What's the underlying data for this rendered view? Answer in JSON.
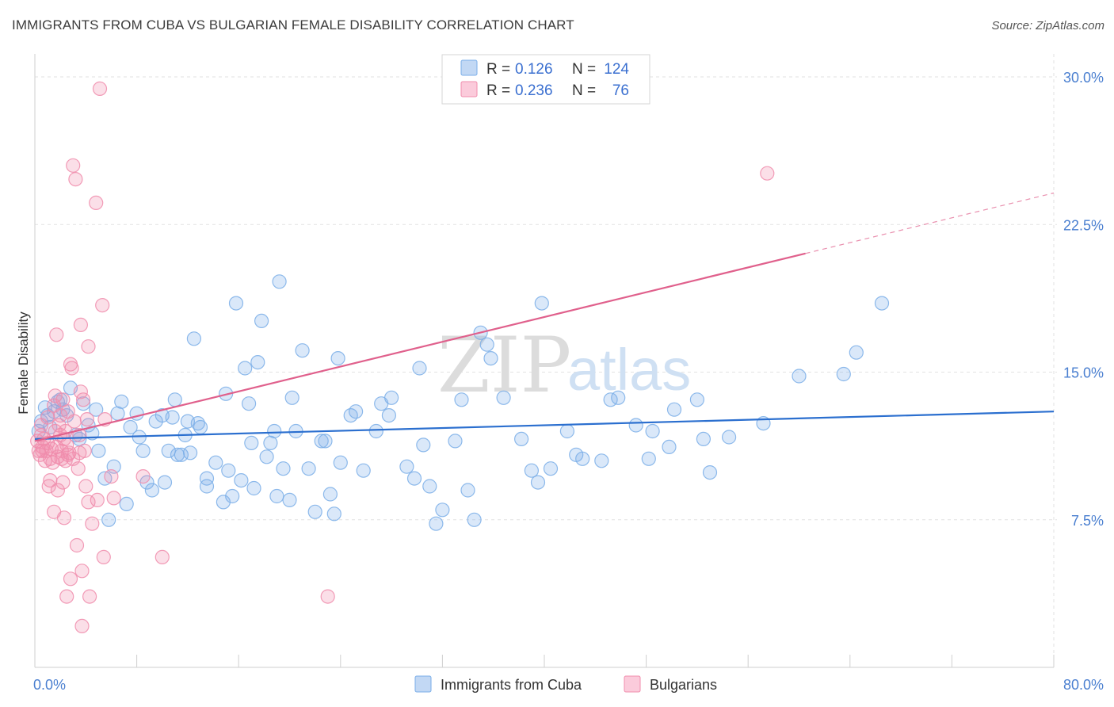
{
  "header": {
    "title": "IMMIGRANTS FROM CUBA VS BULGARIAN FEMALE DISABILITY CORRELATION CHART",
    "source": "Source: ZipAtlas.com"
  },
  "watermark": {
    "part1": "ZIP",
    "part2": "atlas"
  },
  "chart_data": {
    "type": "scatter",
    "title": "IMMIGRANTS FROM CUBA VS BULGARIAN FEMALE DISABILITY CORRELATION CHART",
    "xlabel": "",
    "ylabel": "Female Disability",
    "xlim": [
      0,
      80
    ],
    "ylim": [
      0,
      32
    ],
    "x_tick_labels": [
      "0.0%",
      "80.0%"
    ],
    "y_ticks": [
      7.5,
      15.0,
      22.5,
      30.0
    ],
    "y_tick_labels": [
      "7.5%",
      "15.0%",
      "22.5%",
      "30.0%"
    ],
    "grid": true,
    "legend_position": "bottom-center",
    "stats": [
      {
        "r_label": "R =",
        "r_value": "0.126",
        "n_label": "N =",
        "n_value": "124"
      },
      {
        "r_label": "R =",
        "r_value": "0.236",
        "n_label": "N =",
        "n_value": "76"
      }
    ],
    "series": [
      {
        "name": "Immigrants from Cuba",
        "color": "#7aaee8",
        "line_color": "#2b6fcf",
        "trend": {
          "x0": 0,
          "y0": 11.6,
          "x1": 80,
          "y1": 13.0,
          "dash_from": null
        },
        "points": [
          [
            0.5,
            12.5
          ],
          [
            0.8,
            13.2
          ],
          [
            1.0,
            12.8
          ],
          [
            1.2,
            12.2
          ],
          [
            1.5,
            13.0
          ],
          [
            1.8,
            13.5
          ],
          [
            2.0,
            13.6
          ],
          [
            2.2,
            13.1
          ],
          [
            2.5,
            12.8
          ],
          [
            2.8,
            14.2
          ],
          [
            3.2,
            11.8
          ],
          [
            3.5,
            11.6
          ],
          [
            3.8,
            13.4
          ],
          [
            4.2,
            12.3
          ],
          [
            4.5,
            11.9
          ],
          [
            4.8,
            13.1
          ],
          [
            5.0,
            11.0
          ],
          [
            5.5,
            9.6
          ],
          [
            5.8,
            7.5
          ],
          [
            6.2,
            10.2
          ],
          [
            6.5,
            12.9
          ],
          [
            6.8,
            13.5
          ],
          [
            7.2,
            8.3
          ],
          [
            7.5,
            12.2
          ],
          [
            8.0,
            12.9
          ],
          [
            8.2,
            11.7
          ],
          [
            8.5,
            11.0
          ],
          [
            8.8,
            9.4
          ],
          [
            9.2,
            9.0
          ],
          [
            9.5,
            12.5
          ],
          [
            10.0,
            12.8
          ],
          [
            10.2,
            9.4
          ],
          [
            10.5,
            11.0
          ],
          [
            10.8,
            12.7
          ],
          [
            11.0,
            13.6
          ],
          [
            11.2,
            10.8
          ],
          [
            11.5,
            10.8
          ],
          [
            11.8,
            11.8
          ],
          [
            12.0,
            12.5
          ],
          [
            12.2,
            10.9
          ],
          [
            12.5,
            16.7
          ],
          [
            12.8,
            12.4
          ],
          [
            13.0,
            12.2
          ],
          [
            13.5,
            9.6
          ],
          [
            13.5,
            9.2
          ],
          [
            14.2,
            10.4
          ],
          [
            14.8,
            8.4
          ],
          [
            15.0,
            13.9
          ],
          [
            15.2,
            10.0
          ],
          [
            15.5,
            8.7
          ],
          [
            15.8,
            18.5
          ],
          [
            16.2,
            9.5
          ],
          [
            16.5,
            15.2
          ],
          [
            16.8,
            13.4
          ],
          [
            17.0,
            11.4
          ],
          [
            17.2,
            9.1
          ],
          [
            17.5,
            15.5
          ],
          [
            17.8,
            17.6
          ],
          [
            18.2,
            10.7
          ],
          [
            18.5,
            11.4
          ],
          [
            18.8,
            12.0
          ],
          [
            19.0,
            8.7
          ],
          [
            19.2,
            19.6
          ],
          [
            19.5,
            10.1
          ],
          [
            20.0,
            8.5
          ],
          [
            20.2,
            13.7
          ],
          [
            20.5,
            12.0
          ],
          [
            21.0,
            16.1
          ],
          [
            21.5,
            10.1
          ],
          [
            22.0,
            7.9
          ],
          [
            22.5,
            11.5
          ],
          [
            22.8,
            11.5
          ],
          [
            23.2,
            8.8
          ],
          [
            23.5,
            7.8
          ],
          [
            23.8,
            15.7
          ],
          [
            24.0,
            10.4
          ],
          [
            24.8,
            12.8
          ],
          [
            25.2,
            13.0
          ],
          [
            25.8,
            10.0
          ],
          [
            26.8,
            12.0
          ],
          [
            27.2,
            13.4
          ],
          [
            27.8,
            12.8
          ],
          [
            28.0,
            13.7
          ],
          [
            29.2,
            10.2
          ],
          [
            29.8,
            9.6
          ],
          [
            30.2,
            15.2
          ],
          [
            30.5,
            11.3
          ],
          [
            31.0,
            9.2
          ],
          [
            31.5,
            7.3
          ],
          [
            32.0,
            8.0
          ],
          [
            33.0,
            11.5
          ],
          [
            33.5,
            13.6
          ],
          [
            34.0,
            9.0
          ],
          [
            34.5,
            7.5
          ],
          [
            35.0,
            17.0
          ],
          [
            35.5,
            16.4
          ],
          [
            35.8,
            15.7
          ],
          [
            36.8,
            13.7
          ],
          [
            38.2,
            11.6
          ],
          [
            39.0,
            10.0
          ],
          [
            39.5,
            9.4
          ],
          [
            39.8,
            18.5
          ],
          [
            40.5,
            10.1
          ],
          [
            41.8,
            12.0
          ],
          [
            42.5,
            10.8
          ],
          [
            43.0,
            10.6
          ],
          [
            44.5,
            10.5
          ],
          [
            45.2,
            13.6
          ],
          [
            45.8,
            13.7
          ],
          [
            47.2,
            12.3
          ],
          [
            48.2,
            10.6
          ],
          [
            48.5,
            12.0
          ],
          [
            49.8,
            11.2
          ],
          [
            50.2,
            13.1
          ],
          [
            52.0,
            13.6
          ],
          [
            52.5,
            11.6
          ],
          [
            53.0,
            9.9
          ],
          [
            54.5,
            11.7
          ],
          [
            57.2,
            12.4
          ],
          [
            60.0,
            14.8
          ],
          [
            63.5,
            14.9
          ],
          [
            64.5,
            16.0
          ],
          [
            66.5,
            18.5
          ],
          [
            0.3,
            12.0
          ]
        ]
      },
      {
        "name": "Bulgarians",
        "color": "#f08cac",
        "line_color": "#e0608c",
        "trend": {
          "x0": 0,
          "y0": 11.5,
          "x1": 80,
          "y1": 24.1,
          "dash_from": 60.5
        },
        "points": [
          [
            0.2,
            11.5
          ],
          [
            0.3,
            11.0
          ],
          [
            0.4,
            10.8
          ],
          [
            0.5,
            11.8
          ],
          [
            0.5,
            12.3
          ],
          [
            0.6,
            11.2
          ],
          [
            0.7,
            11.6
          ],
          [
            0.8,
            10.5
          ],
          [
            0.9,
            11.0
          ],
          [
            1.0,
            11.4
          ],
          [
            1.0,
            12.7
          ],
          [
            1.1,
            9.2
          ],
          [
            1.2,
            9.5
          ],
          [
            1.2,
            10.6
          ],
          [
            1.3,
            11.1
          ],
          [
            1.4,
            10.4
          ],
          [
            1.5,
            13.3
          ],
          [
            1.5,
            7.9
          ],
          [
            1.6,
            12.0
          ],
          [
            1.6,
            13.8
          ],
          [
            1.7,
            11.2
          ],
          [
            1.7,
            16.9
          ],
          [
            1.8,
            10.7
          ],
          [
            1.8,
            9.0
          ],
          [
            1.9,
            12.3
          ],
          [
            2.0,
            11.8
          ],
          [
            2.0,
            12.8
          ],
          [
            2.1,
            10.6
          ],
          [
            2.1,
            11.0
          ],
          [
            2.2,
            13.6
          ],
          [
            2.2,
            9.4
          ],
          [
            2.3,
            11.6
          ],
          [
            2.3,
            7.6
          ],
          [
            2.4,
            10.5
          ],
          [
            2.4,
            12.0
          ],
          [
            2.5,
            11.3
          ],
          [
            2.5,
            3.6
          ],
          [
            2.6,
            10.8
          ],
          [
            2.6,
            13.0
          ],
          [
            2.7,
            10.9
          ],
          [
            2.8,
            15.4
          ],
          [
            2.8,
            4.5
          ],
          [
            2.9,
            15.2
          ],
          [
            3.0,
            10.6
          ],
          [
            3.0,
            25.5
          ],
          [
            3.1,
            12.5
          ],
          [
            3.2,
            24.8
          ],
          [
            3.3,
            6.2
          ],
          [
            3.4,
            10.1
          ],
          [
            3.5,
            10.9
          ],
          [
            3.5,
            11.8
          ],
          [
            3.6,
            17.4
          ],
          [
            3.6,
            14.0
          ],
          [
            3.7,
            2.1
          ],
          [
            3.7,
            4.9
          ],
          [
            3.8,
            13.6
          ],
          [
            3.9,
            11.0
          ],
          [
            4.0,
            9.2
          ],
          [
            4.1,
            12.6
          ],
          [
            4.2,
            16.3
          ],
          [
            4.2,
            8.4
          ],
          [
            4.3,
            3.6
          ],
          [
            4.5,
            7.3
          ],
          [
            4.8,
            23.6
          ],
          [
            4.9,
            8.5
          ],
          [
            5.1,
            29.4
          ],
          [
            5.3,
            18.4
          ],
          [
            5.4,
            5.6
          ],
          [
            5.5,
            12.6
          ],
          [
            6.0,
            9.7
          ],
          [
            6.2,
            8.6
          ],
          [
            8.5,
            9.7
          ],
          [
            10.0,
            5.6
          ],
          [
            23.0,
            3.6
          ],
          [
            57.5,
            25.1
          ],
          [
            0.6,
            11.0
          ]
        ]
      }
    ]
  }
}
